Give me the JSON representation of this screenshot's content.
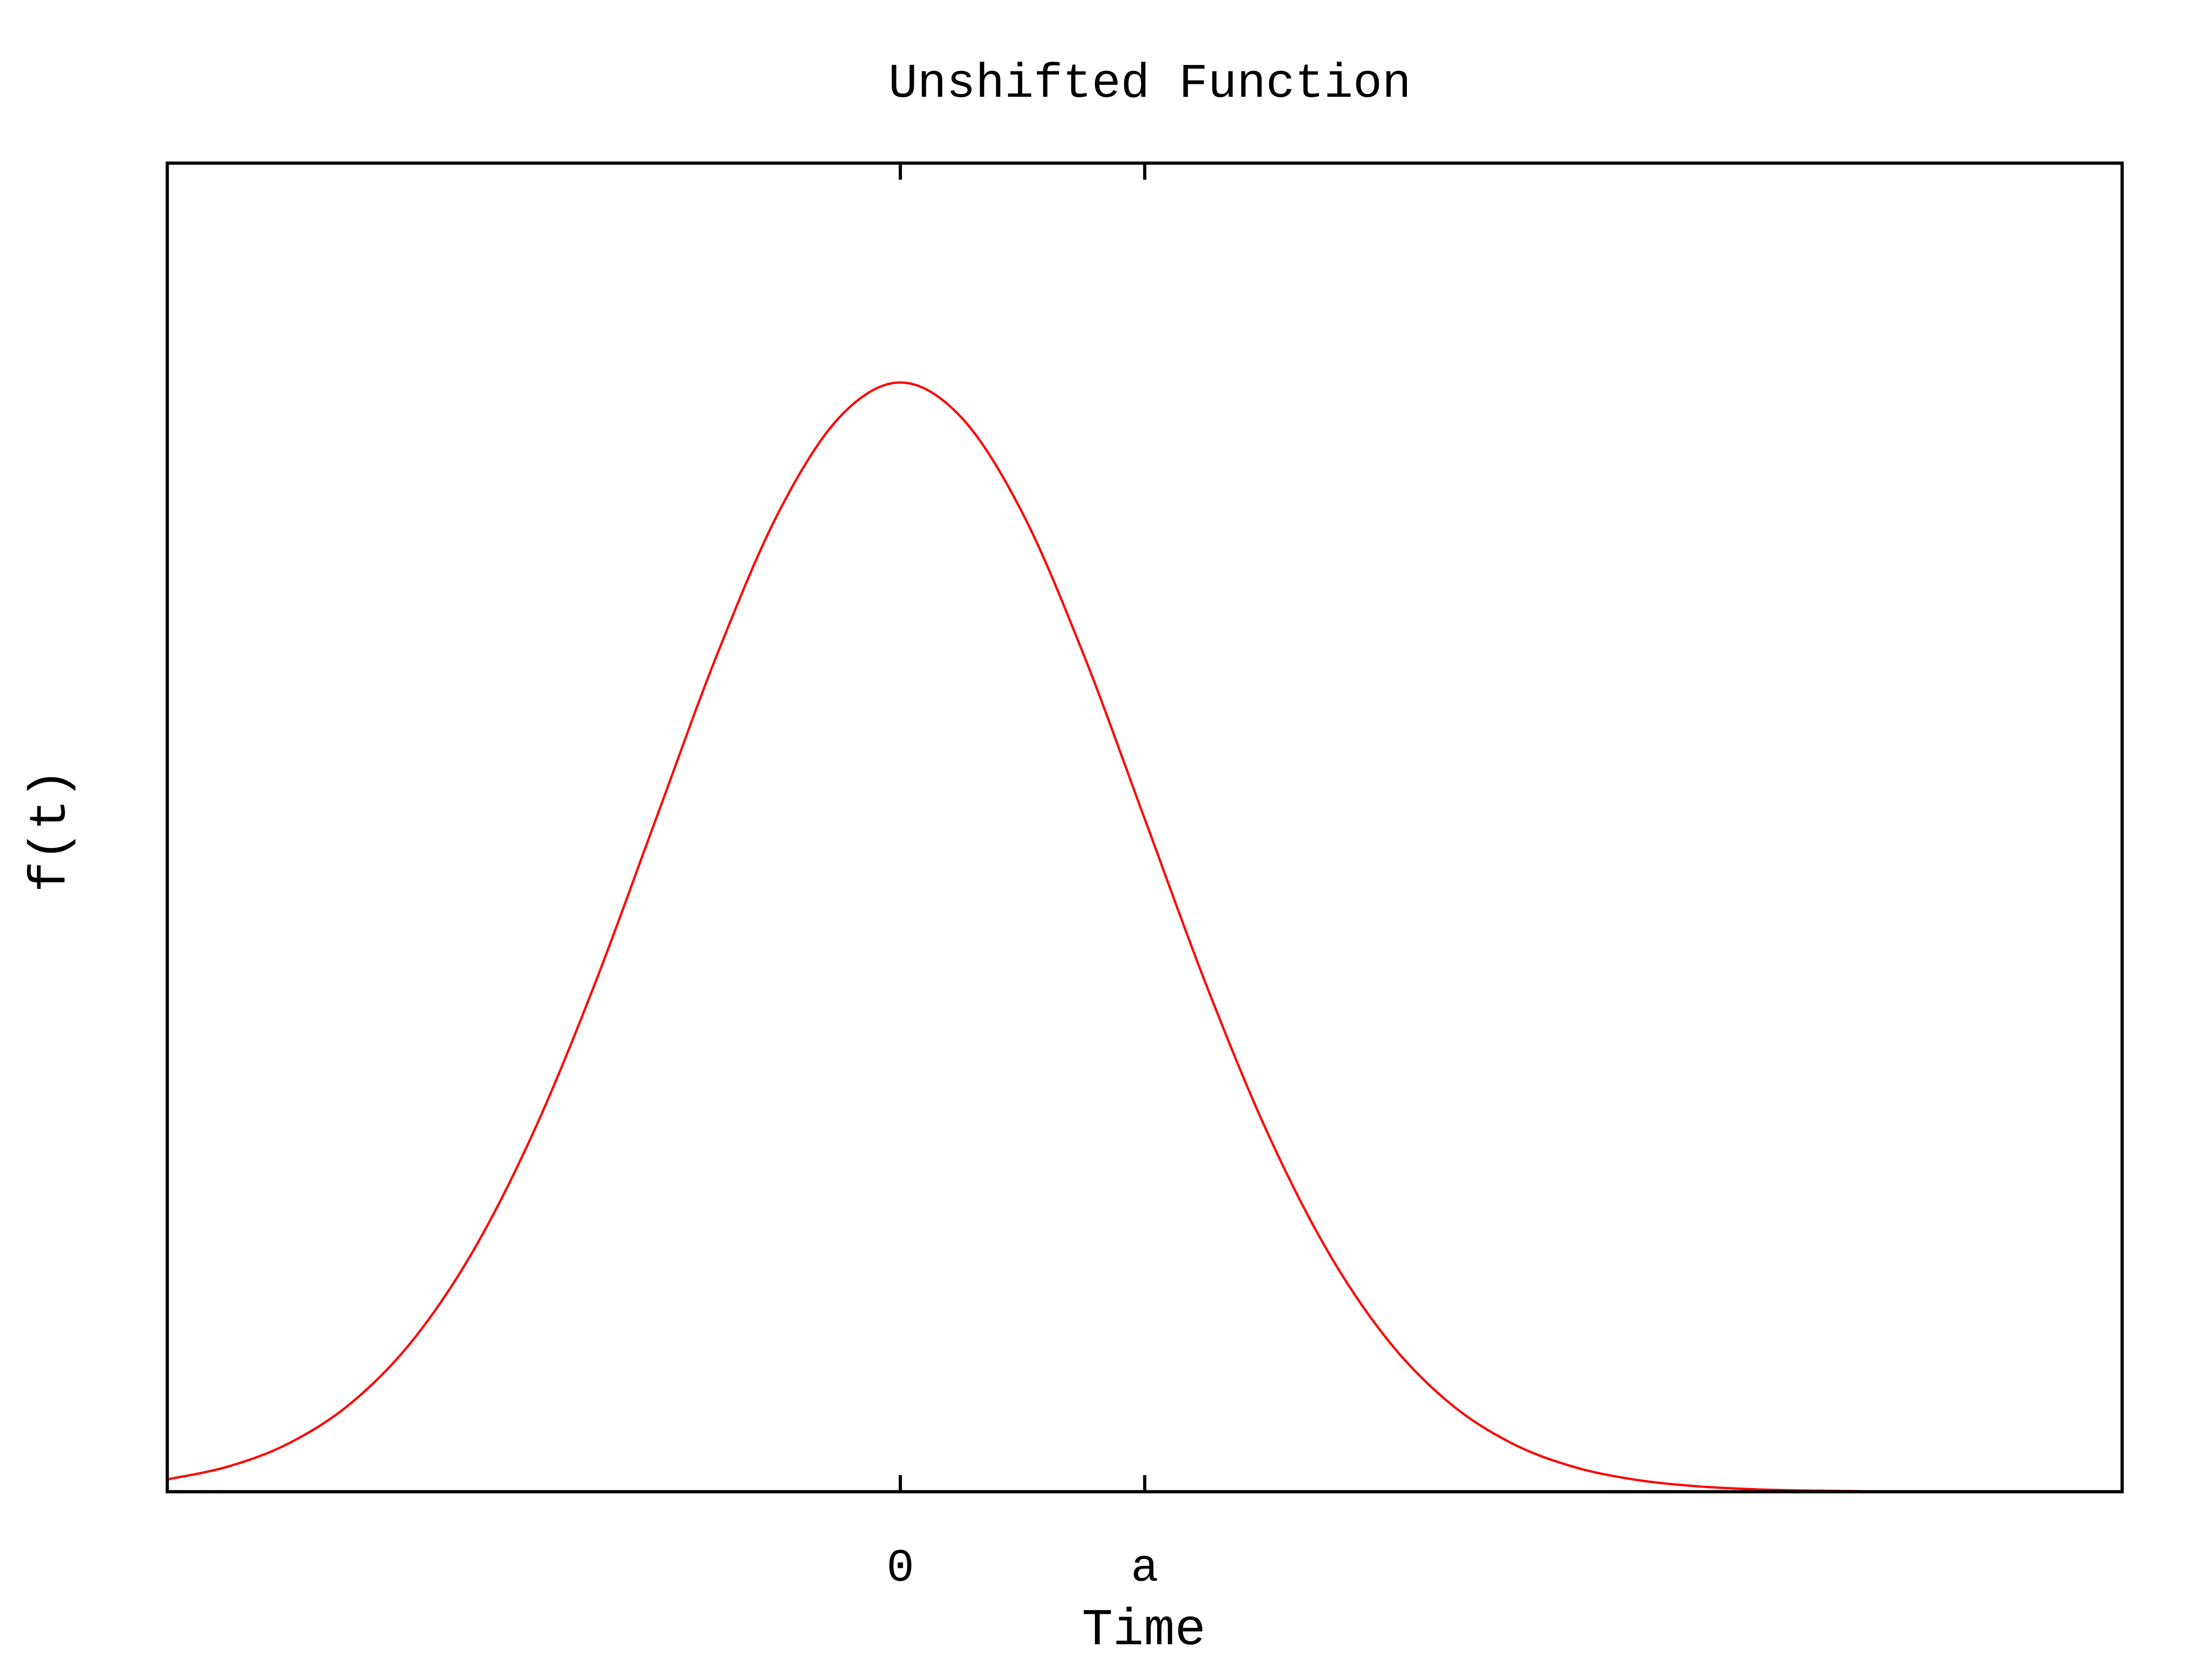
{
  "chart_data": {
    "type": "line",
    "title": "Unshifted Function",
    "xlabel": "Time",
    "ylabel": "f(t)",
    "xlim": [
      -3,
      5
    ],
    "ylim": [
      0,
      1.2
    ],
    "grid": false,
    "legend": "none",
    "x_ticks": [
      {
        "value": 0,
        "label": "0"
      },
      {
        "value": 1,
        "label": "a"
      }
    ],
    "series": [
      {
        "color": "#ff0000",
        "x": [
          -3.0,
          -2.75,
          -2.5,
          -2.25,
          -2.0,
          -1.75,
          -1.5,
          -1.25,
          -1.0,
          -0.75,
          -0.5,
          -0.25,
          0.0,
          0.25,
          0.5,
          0.75,
          1.0,
          1.25,
          1.5,
          1.75,
          2.0,
          2.25,
          2.5,
          2.75,
          3.0,
          3.25,
          3.5,
          3.75,
          4.0,
          4.25,
          4.5,
          4.75,
          5.0
        ],
        "y": [
          0.0133,
          0.0273,
          0.0527,
          0.0954,
          0.1624,
          0.2597,
          0.3898,
          0.5495,
          0.7279,
          0.9057,
          1.0586,
          1.1621,
          1.2,
          1.1621,
          1.0586,
          0.9057,
          0.7279,
          0.5495,
          0.3898,
          0.2597,
          0.1624,
          0.0954,
          0.0527,
          0.0273,
          0.0133,
          0.0061,
          0.0026,
          0.0011,
          0.0004,
          0.0001,
          0.0,
          0.0,
          0.0
        ]
      }
    ]
  }
}
